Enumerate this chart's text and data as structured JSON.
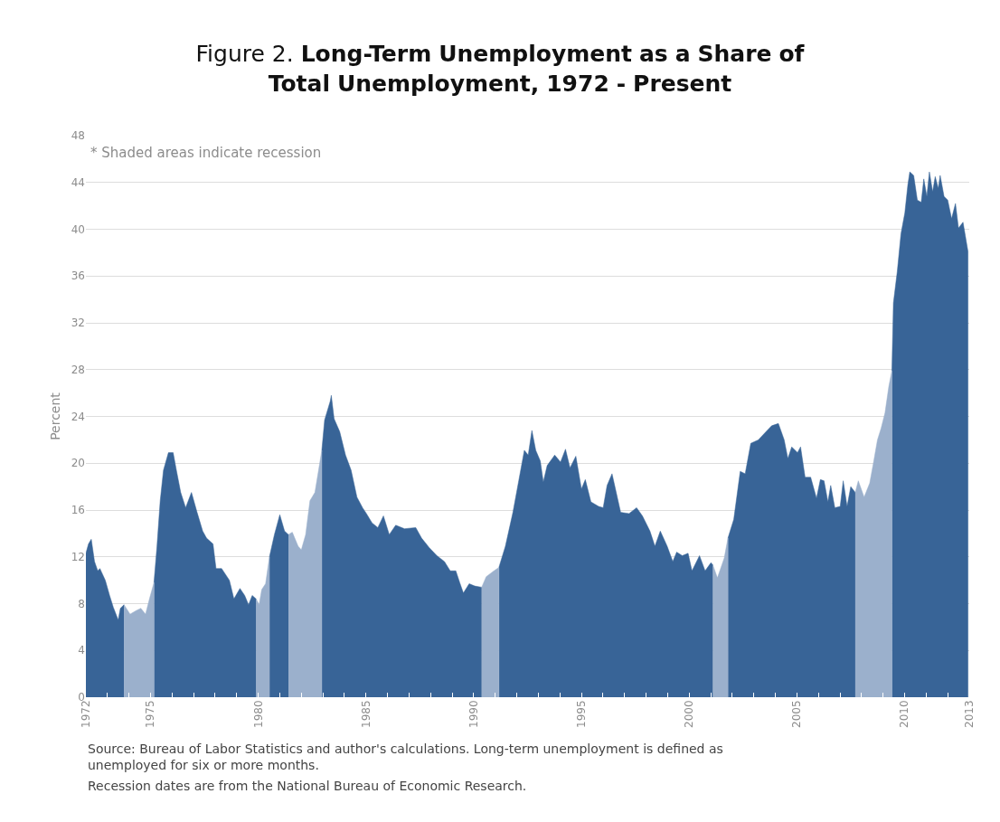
{
  "chart_data": {
    "type": "area",
    "title": "Figure 2. Long-Term Unemployment as a Share of Total Unemployment, 1972 - Present",
    "ylabel": "Percent",
    "annotations": [
      "* Shaded areas indicate recession",
      "Source: Bureau of Labor Statistics and author's calculations. Long-term unemployment is defined as unemployed for six or more months.",
      "Recession dates are from the National Bureau of Economic Research."
    ],
    "x": [
      1972.0,
      1972.12,
      1972.25,
      1972.4,
      1972.55,
      1972.65,
      1972.9,
      1973.1,
      1973.27,
      1973.5,
      1973.6,
      1973.77,
      1974.05,
      1974.33,
      1974.55,
      1974.77,
      1974.95,
      1975.16,
      1975.3,
      1975.45,
      1975.6,
      1975.83,
      1976.05,
      1976.2,
      1976.4,
      1976.63,
      1976.9,
      1977.16,
      1977.42,
      1977.6,
      1977.9,
      1978.04,
      1978.3,
      1978.66,
      1978.87,
      1979.15,
      1979.37,
      1979.55,
      1979.72,
      1979.9,
      1980.04,
      1980.16,
      1980.34,
      1980.52,
      1980.75,
      1981.0,
      1981.22,
      1981.4,
      1981.58,
      1981.85,
      1982.0,
      1982.2,
      1982.4,
      1982.63,
      1982.8,
      1982.95,
      1983.08,
      1983.34,
      1983.39,
      1983.52,
      1983.78,
      1984.05,
      1984.31,
      1984.58,
      1984.84,
      1985.02,
      1985.28,
      1985.55,
      1985.81,
      1986.08,
      1986.38,
      1986.79,
      1987.31,
      1987.58,
      1987.93,
      1988.29,
      1988.64,
      1988.91,
      1989.17,
      1989.35,
      1989.52,
      1989.79,
      1990.05,
      1990.37,
      1990.58,
      1990.94,
      1991.17,
      1991.47,
      1991.82,
      1992.09,
      1992.35,
      1992.53,
      1992.7,
      1992.88,
      1993.09,
      1993.23,
      1993.41,
      1993.76,
      1994.03,
      1994.26,
      1994.47,
      1994.74,
      1995.0,
      1995.18,
      1995.44,
      1995.8,
      1996.01,
      1996.19,
      1996.42,
      1996.82,
      1997.21,
      1997.56,
      1997.83,
      1998.18,
      1998.41,
      1998.66,
      1998.98,
      1999.24,
      1999.42,
      1999.68,
      1999.95,
      2000.13,
      2000.48,
      2000.74,
      2001.01,
      2001.1,
      2001.31,
      2001.63,
      2001.8,
      2002.07,
      2002.37,
      2002.6,
      2002.86,
      2003.21,
      2003.57,
      2003.83,
      2004.14,
      2004.41,
      2004.58,
      2004.76,
      2005.03,
      2005.17,
      2005.38,
      2005.64,
      2005.91,
      2006.09,
      2006.26,
      2006.44,
      2006.57,
      2006.76,
      2007.01,
      2007.15,
      2007.33,
      2007.5,
      2007.71,
      2007.85,
      2008.12,
      2008.38,
      2008.56,
      2008.74,
      2008.91,
      2009.09,
      2009.27,
      2009.41,
      2009.48,
      2009.66,
      2009.83,
      2010.01,
      2010.15,
      2010.24,
      2010.42,
      2010.59,
      2010.77,
      2010.89,
      2011.03,
      2011.15,
      2011.3,
      2011.42,
      2011.56,
      2011.65,
      2011.83,
      2012.0,
      2012.18,
      2012.36,
      2012.5,
      2012.71,
      2012.94
    ],
    "series": [
      {
        "color": "#386497",
        "values": [
          12.3,
          13.1,
          13.5,
          11.6,
          10.8,
          11.0,
          10.0,
          8.7,
          7.7,
          6.6,
          7.6,
          7.9,
          null,
          null,
          null,
          null,
          null,
          9.8,
          12.9,
          16.8,
          19.4,
          20.9,
          20.9,
          19.4,
          17.5,
          16.2,
          17.5,
          15.8,
          14.2,
          13.6,
          13.1,
          11.0,
          11.0,
          10.0,
          8.4,
          9.3,
          8.7,
          7.9,
          8.7,
          8.4,
          null,
          null,
          null,
          12.0,
          13.9,
          15.6,
          14.2,
          13.9,
          null,
          null,
          null,
          null,
          null,
          null,
          null,
          21.1,
          23.7,
          25.3,
          25.8,
          23.8,
          22.7,
          20.7,
          19.4,
          17.1,
          16.2,
          15.7,
          14.9,
          14.5,
          15.5,
          13.9,
          14.7,
          14.4,
          14.5,
          13.6,
          12.8,
          12.1,
          11.6,
          10.8,
          10.8,
          9.8,
          8.9,
          9.7,
          9.5,
          9.4,
          null,
          null,
          11.1,
          12.9,
          15.8,
          18.5,
          21.1,
          20.7,
          22.8,
          21.1,
          20.2,
          18.4,
          19.8,
          20.7,
          20.1,
          21.2,
          19.6,
          20.6,
          17.8,
          18.6,
          16.7,
          16.3,
          16.2,
          18.1,
          19.1,
          15.8,
          15.7,
          16.2,
          15.5,
          14.2,
          12.9,
          14.2,
          12.9,
          11.6,
          12.4,
          12.1,
          12.3,
          10.8,
          12.1,
          10.8,
          11.5,
          11.3,
          null,
          null,
          13.6,
          15.2,
          19.3,
          19.1,
          21.7,
          22.0,
          22.7,
          23.2,
          23.4,
          22.0,
          20.4,
          21.4,
          20.9,
          21.4,
          18.8,
          18.8,
          17.0,
          18.6,
          18.5,
          16.7,
          18.1,
          16.2,
          16.3,
          18.5,
          16.3,
          18.0,
          17.5,
          null,
          null,
          null,
          null,
          null,
          null,
          null,
          null,
          27.9,
          33.7,
          36.4,
          39.6,
          41.4,
          43.8,
          44.9,
          44.6,
          42.5,
          42.3,
          44.3,
          42.8,
          44.9,
          43.2,
          44.5,
          43.5,
          44.6,
          42.8,
          42.5,
          40.9,
          42.2,
          40.1,
          40.6,
          38.1
        ]
      },
      {
        "color": "#9bb0cc",
        "values": [
          null,
          null,
          null,
          null,
          null,
          null,
          null,
          null,
          null,
          null,
          null,
          7.9,
          7.1,
          7.4,
          7.6,
          7.1,
          8.4,
          9.8,
          null,
          null,
          null,
          null,
          null,
          null,
          null,
          null,
          null,
          null,
          null,
          null,
          null,
          null,
          null,
          null,
          null,
          null,
          null,
          null,
          null,
          8.4,
          7.9,
          9.2,
          9.7,
          12.0,
          null,
          null,
          null,
          13.9,
          14.1,
          12.9,
          12.6,
          13.9,
          16.8,
          17.5,
          19.4,
          21.1,
          null,
          null,
          null,
          null,
          null,
          null,
          null,
          null,
          null,
          null,
          null,
          null,
          null,
          null,
          null,
          null,
          null,
          null,
          null,
          null,
          null,
          null,
          null,
          null,
          null,
          null,
          null,
          9.4,
          10.3,
          10.8,
          11.1,
          null,
          null,
          null,
          null,
          null,
          null,
          null,
          null,
          null,
          null,
          null,
          null,
          null,
          null,
          null,
          null,
          null,
          null,
          null,
          null,
          null,
          null,
          null,
          null,
          null,
          null,
          null,
          null,
          null,
          null,
          null,
          null,
          null,
          null,
          null,
          null,
          null,
          null,
          11.3,
          10.2,
          11.9,
          13.6,
          null,
          null,
          null,
          null,
          null,
          null,
          null,
          null,
          null,
          null,
          null,
          null,
          null,
          null,
          null,
          null,
          null,
          null,
          null,
          null,
          null,
          null,
          null,
          null,
          null,
          17.5,
          18.5,
          17.1,
          18.3,
          20.1,
          22.0,
          23.0,
          24.3,
          26.6,
          27.9,
          null,
          null,
          null,
          null,
          null,
          null,
          null,
          null,
          null,
          null,
          null,
          null,
          null,
          null,
          null,
          null,
          null,
          null,
          null,
          null,
          null,
          null,
          null
        ]
      }
    ],
    "xlim": [
      1972,
      2013
    ],
    "xticks": [
      1972,
      {
        "value": 1973,
        "label": null
      },
      {
        "value": 1974,
        "label": null
      },
      1975,
      {
        "value": 1976,
        "label": null
      },
      {
        "value": 1977,
        "label": null
      },
      {
        "value": 1978,
        "label": null
      },
      {
        "value": 1979,
        "label": null
      },
      1980,
      {
        "value": 1981,
        "label": null
      },
      {
        "value": 1982,
        "label": null
      },
      {
        "value": 1983,
        "label": null
      },
      {
        "value": 1984,
        "label": null
      },
      1985,
      {
        "value": 1986,
        "label": null
      },
      {
        "value": 1987,
        "label": null
      },
      {
        "value": 1988,
        "label": null
      },
      {
        "value": 1989,
        "label": null
      },
      1990,
      {
        "value": 1991,
        "label": null
      },
      {
        "value": 1992,
        "label": null
      },
      {
        "value": 1993,
        "label": null
      },
      {
        "value": 1994,
        "label": null
      },
      1995,
      {
        "value": 1996,
        "label": null
      },
      {
        "value": 1997,
        "label": null
      },
      {
        "value": 1998,
        "label": null
      },
      {
        "value": 1999,
        "label": null
      },
      2000,
      {
        "value": 2001,
        "label": null
      },
      {
        "value": 2002,
        "label": null
      },
      {
        "value": 2003,
        "label": null
      },
      {
        "value": 2004,
        "label": null
      },
      2005,
      {
        "value": 2006,
        "label": null
      },
      {
        "value": 2007,
        "label": null
      },
      {
        "value": 2008,
        "label": null
      },
      {
        "value": 2009,
        "label": null
      },
      2010,
      {
        "value": 2011,
        "label": null
      },
      {
        "value": 2012,
        "label": null
      },
      2013
    ],
    "ylim": [
      0,
      48
    ],
    "yticks": [
      0,
      4,
      8,
      12,
      16,
      20,
      24,
      28,
      32,
      36,
      40,
      44,
      48
    ],
    "grid": "y"
  }
}
